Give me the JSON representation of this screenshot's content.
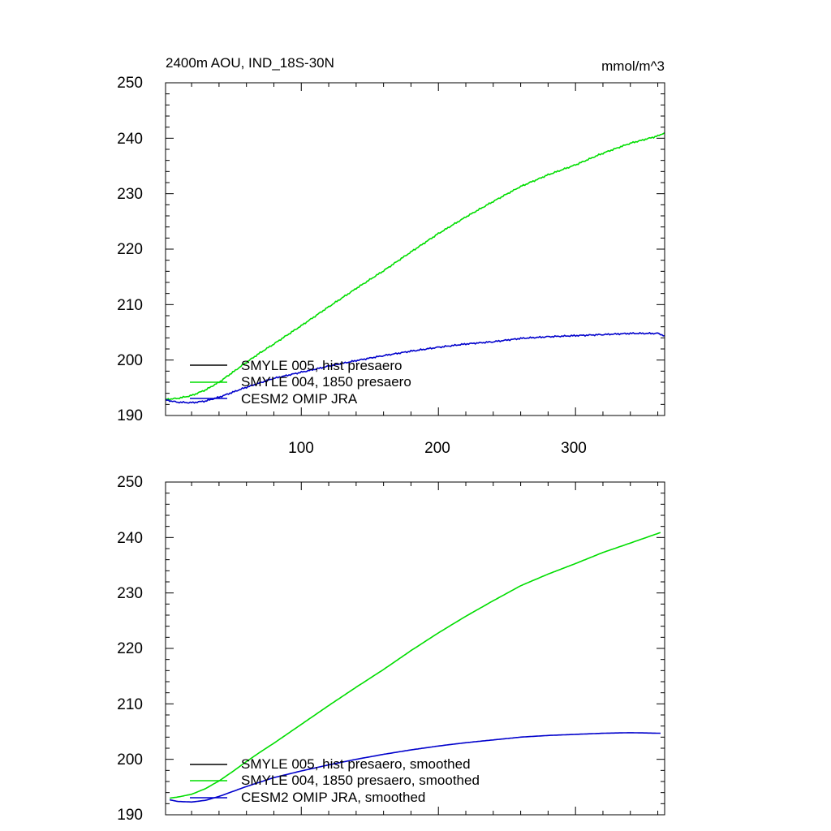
{
  "chart_data": [
    {
      "type": "line",
      "title": "2400m AOU, IND_18S-30N",
      "units": "mmol/m^3",
      "xlim": [
        1,
        365
      ],
      "ylim": [
        190,
        250
      ],
      "yticks": [
        190,
        200,
        210,
        220,
        230,
        240,
        250
      ],
      "xticks": [
        100,
        200,
        300
      ],
      "ytick_labels": [
        "190",
        "200",
        "210",
        "220",
        "230",
        "240",
        "250"
      ],
      "xtick_labels": [
        "100",
        "200",
        "300"
      ],
      "grid": false,
      "legend_position": "bottom-left",
      "legend": [
        {
          "label": "SMYLE 005, hist presaero",
          "color": "#000000"
        },
        {
          "label": "SMYLE 004, 1850 presaero",
          "color": "#00dd00"
        },
        {
          "label": "CESM2 OMIP JRA",
          "color": "#0000cc"
        }
      ],
      "series": [
        {
          "name": "SMYLE 004, 1850 presaero",
          "color": "#00dd00",
          "x": [
            1,
            10,
            20,
            30,
            40,
            50,
            60,
            70,
            80,
            100,
            120,
            140,
            160,
            180,
            200,
            220,
            240,
            260,
            280,
            300,
            320,
            340,
            360,
            365
          ],
          "y": [
            192.9,
            193.1,
            193.6,
            194.6,
            196.0,
            197.8,
            199.6,
            201.3,
            202.9,
            206.2,
            209.6,
            212.9,
            216.1,
            219.5,
            222.8,
            225.8,
            228.6,
            231.3,
            233.4,
            235.2,
            237.3,
            239.1,
            240.4,
            241.0
          ],
          "noise": 0.15
        },
        {
          "name": "CESM2 OMIP JRA",
          "color": "#0000cc",
          "x": [
            1,
            10,
            20,
            30,
            40,
            50,
            60,
            80,
            100,
            120,
            140,
            160,
            180,
            200,
            220,
            240,
            260,
            280,
            300,
            320,
            340,
            360,
            365
          ],
          "y": [
            192.8,
            192.4,
            192.3,
            192.6,
            193.3,
            194.2,
            195.1,
            196.7,
            197.8,
            198.9,
            199.9,
            200.8,
            201.6,
            202.3,
            202.9,
            203.3,
            203.9,
            204.2,
            204.4,
            204.6,
            204.8,
            204.8,
            204.4
          ],
          "noise": 0.15
        }
      ]
    },
    {
      "type": "line",
      "xlim": [
        1,
        365
      ],
      "ylim": [
        190,
        250
      ],
      "yticks": [
        190,
        200,
        210,
        220,
        230,
        240,
        250
      ],
      "xticks": [
        100,
        200,
        300
      ],
      "ytick_labels": [
        "190",
        "200",
        "210",
        "220",
        "230",
        "240",
        "250"
      ],
      "grid": false,
      "legend_position": "bottom-left",
      "legend": [
        {
          "label": "SMYLE 005, hist presaero, smoothed",
          "color": "#000000"
        },
        {
          "label": "SMYLE 004, 1850 presaero, smoothed",
          "color": "#00dd00"
        },
        {
          "label": "CESM2 OMIP JRA, smoothed",
          "color": "#0000cc"
        }
      ],
      "series": [
        {
          "name": "SMYLE 004, 1850 presaero, smoothed",
          "color": "#00dd00",
          "x": [
            4,
            10,
            20,
            30,
            40,
            50,
            60,
            70,
            80,
            100,
            120,
            140,
            160,
            180,
            200,
            220,
            240,
            260,
            280,
            300,
            320,
            340,
            362
          ],
          "y": [
            193.0,
            193.2,
            193.7,
            194.7,
            196.1,
            197.8,
            199.6,
            201.3,
            202.9,
            206.3,
            209.7,
            213.0,
            216.2,
            219.6,
            222.8,
            225.8,
            228.6,
            231.3,
            233.4,
            235.3,
            237.3,
            239.0,
            240.9
          ],
          "noise": 0
        },
        {
          "name": "CESM2 OMIP JRA, smoothed",
          "color": "#0000cc",
          "x": [
            4,
            10,
            20,
            30,
            40,
            50,
            60,
            80,
            100,
            120,
            140,
            160,
            180,
            200,
            220,
            240,
            260,
            280,
            300,
            320,
            340,
            362
          ],
          "y": [
            192.7,
            192.4,
            192.3,
            192.6,
            193.3,
            194.2,
            195.1,
            196.7,
            197.9,
            199.0,
            200.0,
            200.9,
            201.7,
            202.4,
            203.0,
            203.5,
            204.0,
            204.3,
            204.5,
            204.7,
            204.8,
            204.7
          ],
          "noise": 0
        }
      ]
    }
  ]
}
